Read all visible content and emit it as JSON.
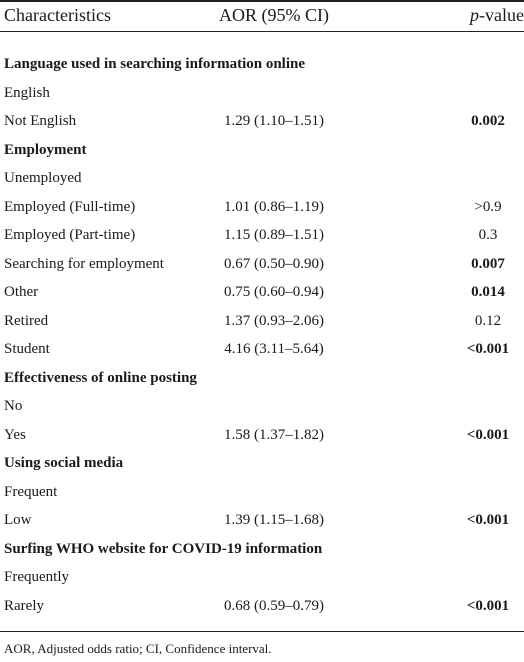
{
  "header": {
    "characteristics": "Characteristics",
    "aor": "AOR (95% CI)",
    "pvalue_italic": "p",
    "pvalue_rest": "-value"
  },
  "rows": [
    {
      "type": "section",
      "label": "Language used in searching information online"
    },
    {
      "type": "item",
      "label": "English",
      "aor": "",
      "p": "",
      "sig": false
    },
    {
      "type": "item",
      "label": "Not English",
      "aor": "1.29 (1.10–1.51)",
      "p": "0.002",
      "sig": true
    },
    {
      "type": "section",
      "label": "Employment"
    },
    {
      "type": "item",
      "label": "Unemployed",
      "aor": "",
      "p": "",
      "sig": false
    },
    {
      "type": "item",
      "label": "Employed (Full-time)",
      "aor": "1.01 (0.86–1.19)",
      "p": ">0.9",
      "sig": false
    },
    {
      "type": "item",
      "label": "Employed (Part-time)",
      "aor": "1.15 (0.89–1.51)",
      "p": "0.3",
      "sig": false
    },
    {
      "type": "item",
      "label": "Searching for employment",
      "aor": "0.67 (0.50–0.90)",
      "p": "0.007",
      "sig": true
    },
    {
      "type": "item",
      "label": "Other",
      "aor": "0.75 (0.60–0.94)",
      "p": "0.014",
      "sig": true
    },
    {
      "type": "item",
      "label": "Retired",
      "aor": "1.37 (0.93–2.06)",
      "p": "0.12",
      "sig": false
    },
    {
      "type": "item",
      "label": "Student",
      "aor": "4.16 (3.11–5.64)",
      "p": "<0.001",
      "sig": true
    },
    {
      "type": "section",
      "label": "Effectiveness of online posting"
    },
    {
      "type": "item",
      "label": "No",
      "aor": "",
      "p": "",
      "sig": false
    },
    {
      "type": "item",
      "label": "Yes",
      "aor": "1.58 (1.37–1.82)",
      "p": "<0.001",
      "sig": true
    },
    {
      "type": "section",
      "label": "Using social media"
    },
    {
      "type": "item",
      "label": "Frequent",
      "aor": "",
      "p": "",
      "sig": false
    },
    {
      "type": "item",
      "label": "Low",
      "aor": "1.39 (1.15–1.68)",
      "p": "<0.001",
      "sig": true
    },
    {
      "type": "section",
      "label": "Surfing WHO website for COVID-19 information"
    },
    {
      "type": "item",
      "label": "Frequently",
      "aor": "",
      "p": "",
      "sig": false
    },
    {
      "type": "item",
      "label": "Rarely",
      "aor": "0.68 (0.59–0.79)",
      "p": "<0.001",
      "sig": true
    }
  ],
  "footnote": "AOR, Adjusted odds ratio; CI, Confidence interval."
}
